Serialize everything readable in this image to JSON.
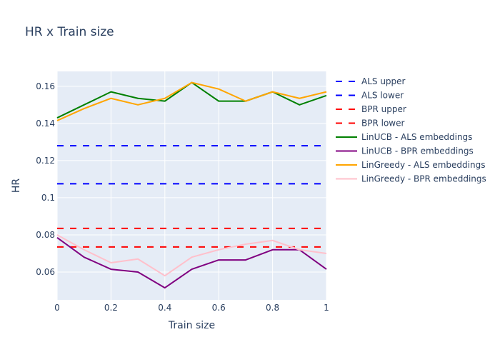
{
  "chart_data": {
    "type": "line",
    "title": "HR x Train size",
    "xlabel": "Train size",
    "ylabel": "HR",
    "xlim": [
      0,
      1
    ],
    "ylim": [
      0.045,
      0.168
    ],
    "x_ticks": [
      0,
      0.2,
      0.4,
      0.6,
      0.8,
      1
    ],
    "x_tick_labels": [
      "0",
      "0.2",
      "0.4",
      "0.6",
      "0.8",
      "1"
    ],
    "y_ticks": [
      0.06,
      0.08,
      0.1,
      0.12,
      0.14,
      0.16
    ],
    "y_tick_labels": [
      "0.06",
      "0.08",
      "0.1",
      "0.12",
      "0.14",
      "0.16"
    ],
    "grid": true,
    "legend_position": "right",
    "plot_background": "#e5ecf6",
    "x": [
      0,
      0.1,
      0.2,
      0.3,
      0.4,
      0.5,
      0.6,
      0.7,
      0.8,
      0.9,
      1
    ],
    "series": [
      {
        "name": "ALS upper",
        "color": "#0000ff",
        "dash": true,
        "values": [
          0.128,
          0.128,
          0.128,
          0.128,
          0.128,
          0.128,
          0.128,
          0.128,
          0.128,
          0.128,
          0.128
        ]
      },
      {
        "name": "ALS lower",
        "color": "#0000ff",
        "dash": true,
        "values": [
          0.1075,
          0.1075,
          0.1075,
          0.1075,
          0.1075,
          0.1075,
          0.1075,
          0.1075,
          0.1075,
          0.1075,
          0.1075
        ]
      },
      {
        "name": "BPR upper",
        "color": "#ff0000",
        "dash": true,
        "values": [
          0.0835,
          0.0835,
          0.0835,
          0.0835,
          0.0835,
          0.0835,
          0.0835,
          0.0835,
          0.0835,
          0.0835,
          0.0835
        ]
      },
      {
        "name": "BPR lower",
        "color": "#ff0000",
        "dash": true,
        "values": [
          0.0735,
          0.0735,
          0.0735,
          0.0735,
          0.0735,
          0.0735,
          0.0735,
          0.0735,
          0.0735,
          0.0735,
          0.0735
        ]
      },
      {
        "name": "LinUCB - ALS embeddings",
        "color": "#008000",
        "dash": false,
        "values": [
          0.143,
          0.15,
          0.157,
          0.1535,
          0.152,
          0.162,
          0.152,
          0.152,
          0.157,
          0.15,
          0.155
        ]
      },
      {
        "name": "LinUCB - BPR embeddings",
        "color": "#800080",
        "dash": false,
        "values": [
          0.0785,
          0.068,
          0.0615,
          0.06,
          0.0515,
          0.0615,
          0.0665,
          0.0665,
          0.072,
          0.072,
          0.0615
        ]
      },
      {
        "name": "LinGreedy - ALS embeddings",
        "color": "#ffa500",
        "dash": false,
        "values": [
          0.1415,
          0.148,
          0.1535,
          0.15,
          0.1535,
          0.162,
          0.1585,
          0.152,
          0.157,
          0.1535,
          0.157
        ]
      },
      {
        "name": "LinGreedy - BPR embeddings",
        "color": "#ffc0cb",
        "dash": false,
        "values": [
          0.08,
          0.072,
          0.065,
          0.067,
          0.058,
          0.068,
          0.072,
          0.075,
          0.077,
          0.072,
          0.07
        ]
      }
    ]
  }
}
